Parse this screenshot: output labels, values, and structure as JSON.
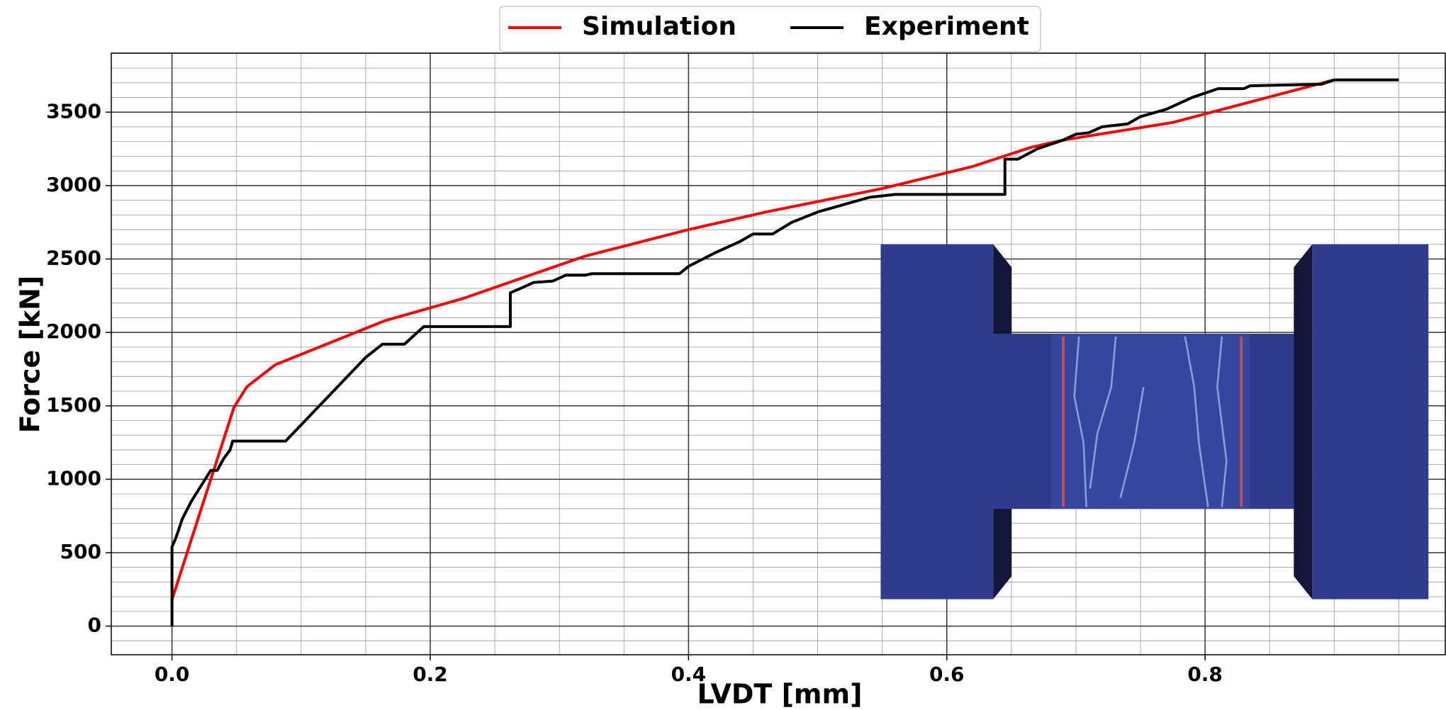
{
  "chart_data": {
    "type": "line",
    "xlabel": "LVDT [mm]",
    "ylabel": "Force [kN]",
    "xlim": [
      -0.047,
      0.986
    ],
    "ylim": [
      -195,
      3902
    ],
    "xticks": [
      {
        "value": 0,
        "label": "0.0"
      },
      0.2,
      0.4,
      0.6,
      0.8
    ],
    "yticks": [
      0,
      500,
      1000,
      1500,
      2000,
      2500,
      3000,
      3500
    ],
    "grid": true,
    "minor_grid_step": {
      "x": 0.05,
      "y": 100
    },
    "legend": "top-center",
    "series": [
      {
        "name": "Simulation",
        "color": "#ff0000",
        "x": [
          0,
          0.048,
          0.058,
          0.08,
          0.165,
          0.225,
          0.32,
          0.4,
          0.46,
          0.55,
          0.62,
          0.665,
          0.69,
          0.775,
          0.9
        ],
        "values": [
          180,
          1490,
          1630,
          1780,
          2080,
          2230,
          2520,
          2700,
          2820,
          2980,
          3130,
          3260,
          3310,
          3430,
          3720
        ]
      },
      {
        "name": "Experiment",
        "color": "#000000",
        "x": [
          0,
          0,
          0.003,
          0.008,
          0.015,
          0.02,
          0.025,
          0.03,
          0.035,
          0.04,
          0.045,
          0.047,
          0.088,
          0.15,
          0.163,
          0.18,
          0.19,
          0.195,
          0.262,
          0.262,
          0.27,
          0.28,
          0.295,
          0.305,
          0.32,
          0.325,
          0.393,
          0.4,
          0.42,
          0.44,
          0.45,
          0.465,
          0.48,
          0.5,
          0.52,
          0.54,
          0.56,
          0.645,
          0.645,
          0.655,
          0.67,
          0.69,
          0.7,
          0.71,
          0.72,
          0.74,
          0.75,
          0.77,
          0.79,
          0.81,
          0.83,
          0.835,
          0.89,
          0.9,
          0.95
        ],
        "values": [
          0,
          540,
          600,
          730,
          850,
          920,
          990,
          1060,
          1060,
          1140,
          1200,
          1260,
          1260,
          1830,
          1920,
          1920,
          2000,
          2040,
          2040,
          2270,
          2300,
          2340,
          2350,
          2390,
          2390,
          2400,
          2400,
          2450,
          2540,
          2620,
          2670,
          2670,
          2750,
          2820,
          2870,
          2920,
          2940,
          2940,
          3180,
          3180,
          3250,
          3310,
          3350,
          3360,
          3400,
          3420,
          3470,
          3520,
          3600,
          3660,
          3660,
          3680,
          3690,
          3720,
          3720
        ]
      }
    ]
  }
}
